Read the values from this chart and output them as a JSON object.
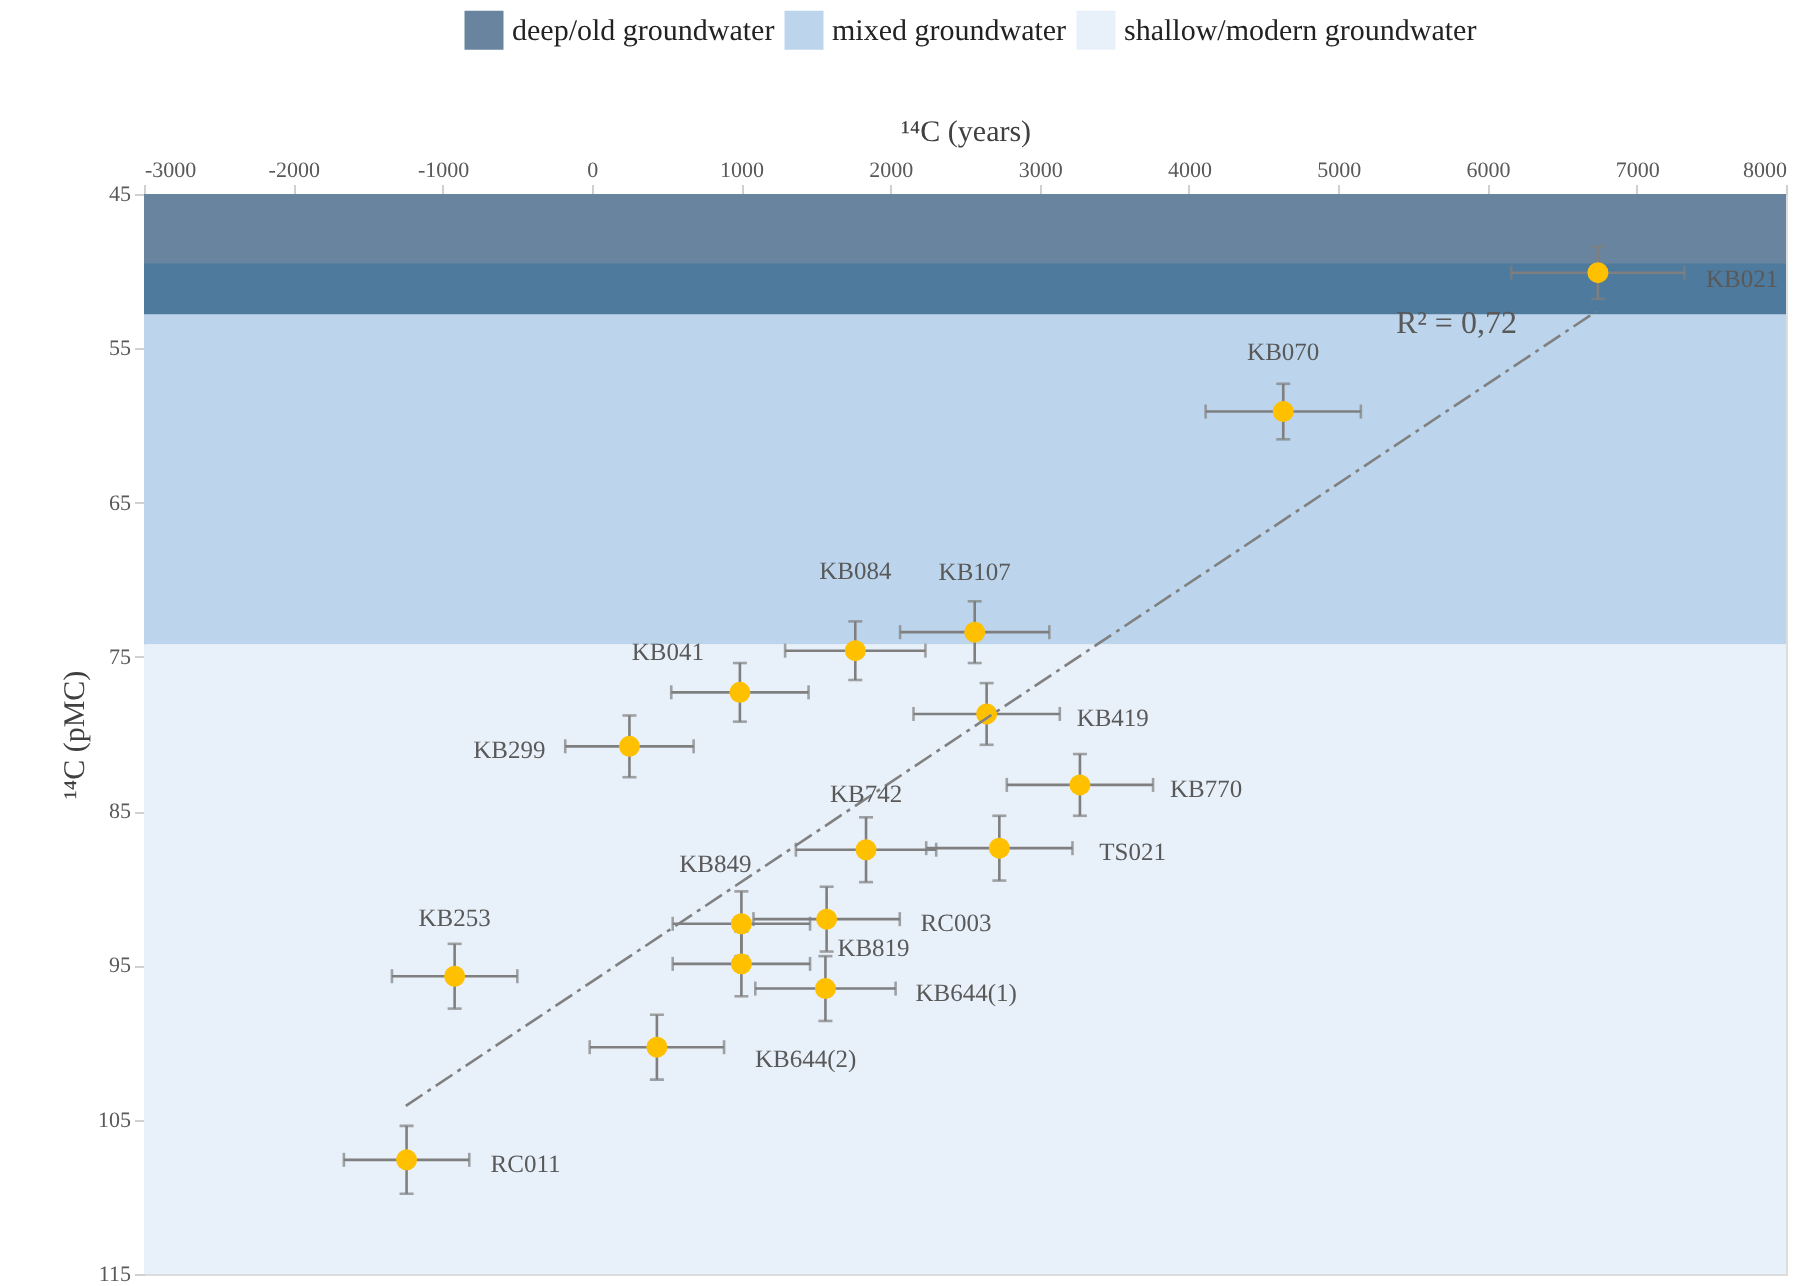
{
  "chart_data": {
    "type": "scatter",
    "xlabel": "¹⁴C (years)",
    "ylabel": "¹⁴C (pMC)",
    "xlim": [
      -3000,
      8000
    ],
    "xticks": [
      -3000,
      -2000,
      -1000,
      0,
      1000,
      2000,
      3000,
      4000,
      5000,
      6000,
      7000,
      8000
    ],
    "ylim": [
      115,
      45
    ],
    "yticks": [
      45,
      55,
      65,
      75,
      85,
      95,
      105,
      115
    ],
    "grid": false,
    "legend": "top",
    "marker": "circle",
    "bands": [
      {
        "axis": "y",
        "from": 45,
        "to": 52.8,
        "label": "deep/old groundwater",
        "color": "#68849f"
      },
      {
        "axis": "y",
        "from": 52.8,
        "to": 74.2,
        "label": "mixed groundwater",
        "color": "#bcd5ec"
      },
      {
        "axis": "y",
        "from": 74.2,
        "to": 115,
        "label": "shallow/modern groundwater",
        "color": "#e8f0fa"
      },
      {
        "axis": "y",
        "from": 49.5,
        "to": 52.8,
        "color": "#4e7a9e"
      }
    ],
    "series": [
      {
        "color": "#ffc000",
        "x": [
          6740,
          4632,
          1765,
          2565,
          992,
          2645,
          252,
          3270,
          1837,
          2730,
          1573,
          1002,
          1002,
          1565,
          436,
          -919,
          -1241
        ],
        "values": [
          50.1,
          59.1,
          74.6,
          73.4,
          77.3,
          78.7,
          80.8,
          83.3,
          87.5,
          87.4,
          92.0,
          92.3,
          94.9,
          96.5,
          100.3,
          95.7,
          107.6
        ],
        "errors": [
          1.7,
          1.8,
          1.9,
          2.0,
          1.9,
          2.0,
          2.0,
          2.0,
          2.1,
          2.1,
          2.1,
          2.1,
          2.1,
          2.1,
          2.1,
          2.1,
          2.2
        ],
        "xerrors": [
          580,
          520,
          470,
          500,
          460,
          490,
          430,
          490,
          470,
          490,
          490,
          460,
          460,
          470,
          450,
          420,
          420
        ]
      },
      {
        "type": "line",
        "color": "#808080",
        "line_style": "dashed",
        "marker": "none",
        "x": [
          -1246,
          6730
        ],
        "values": [
          104.1,
          52.6
        ]
      }
    ],
    "annotations": [
      "KB021",
      "KB070",
      "KB084",
      "KB107",
      "KB041",
      "KB419",
      "KB299",
      "KB770",
      "KB742",
      "TS021",
      "RC003",
      "KB849",
      "KB819",
      "KB644(1)",
      "KB644(2)",
      "KB253",
      "RC011",
      "R² = 0,72"
    ]
  }
}
